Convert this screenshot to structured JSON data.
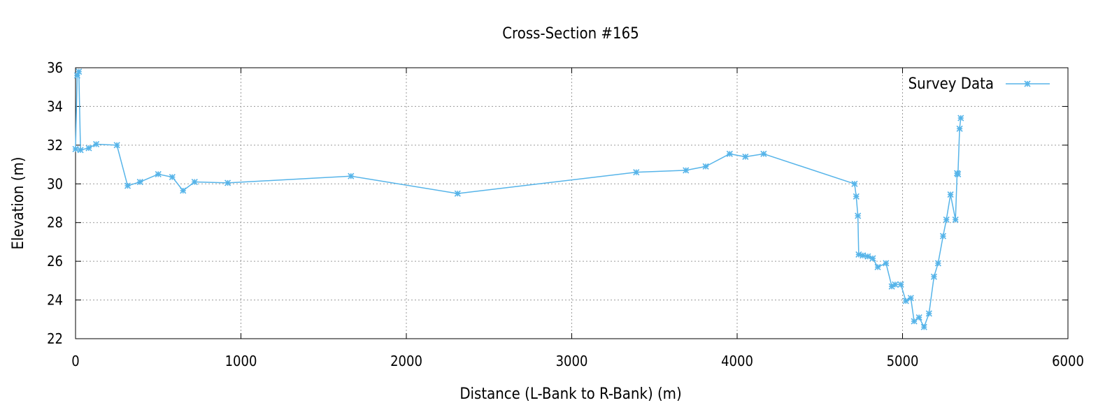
{
  "chart_data": {
    "type": "line",
    "title": "Cross-Section #165",
    "xlabel": "Distance (L-Bank to R-Bank) (m)",
    "ylabel": "Elevation (m)",
    "xlim": [
      0,
      6000
    ],
    "ylim": [
      22,
      36
    ],
    "x_ticks": [
      0,
      1000,
      2000,
      3000,
      4000,
      5000,
      6000
    ],
    "y_ticks": [
      22,
      24,
      26,
      28,
      30,
      32,
      34,
      36
    ],
    "grid": true,
    "legend": "top-right",
    "series": [
      {
        "name": "Survey Data",
        "color": "#56b4e9",
        "marker": "x-star",
        "points": [
          [
            0,
            31.8
          ],
          [
            10,
            35.6
          ],
          [
            20,
            35.8
          ],
          [
            30,
            31.75
          ],
          [
            80,
            31.85
          ],
          [
            125,
            32.05
          ],
          [
            250,
            32.0
          ],
          [
            315,
            29.9
          ],
          [
            390,
            30.1
          ],
          [
            500,
            30.5
          ],
          [
            585,
            30.35
          ],
          [
            650,
            29.65
          ],
          [
            720,
            30.1
          ],
          [
            920,
            30.05
          ],
          [
            1665,
            30.4
          ],
          [
            2310,
            29.5
          ],
          [
            3390,
            30.6
          ],
          [
            3690,
            30.7
          ],
          [
            3810,
            30.9
          ],
          [
            3955,
            31.55
          ],
          [
            4050,
            31.4
          ],
          [
            4160,
            31.55
          ],
          [
            4710,
            30.0
          ],
          [
            4720,
            29.35
          ],
          [
            4730,
            28.35
          ],
          [
            4735,
            26.35
          ],
          [
            4760,
            26.3
          ],
          [
            4790,
            26.25
          ],
          [
            4820,
            26.15
          ],
          [
            4850,
            25.7
          ],
          [
            4900,
            25.9
          ],
          [
            4935,
            24.7
          ],
          [
            4955,
            24.8
          ],
          [
            4990,
            24.8
          ],
          [
            5020,
            23.95
          ],
          [
            5050,
            24.1
          ],
          [
            5070,
            22.9
          ],
          [
            5100,
            23.1
          ],
          [
            5130,
            22.6
          ],
          [
            5160,
            23.3
          ],
          [
            5190,
            25.2
          ],
          [
            5215,
            25.9
          ],
          [
            5245,
            27.3
          ],
          [
            5265,
            28.15
          ],
          [
            5290,
            29.45
          ],
          [
            5320,
            28.15
          ],
          [
            5330,
            30.55
          ],
          [
            5335,
            30.5
          ],
          [
            5345,
            32.85
          ],
          [
            5352,
            33.4
          ]
        ]
      }
    ]
  }
}
